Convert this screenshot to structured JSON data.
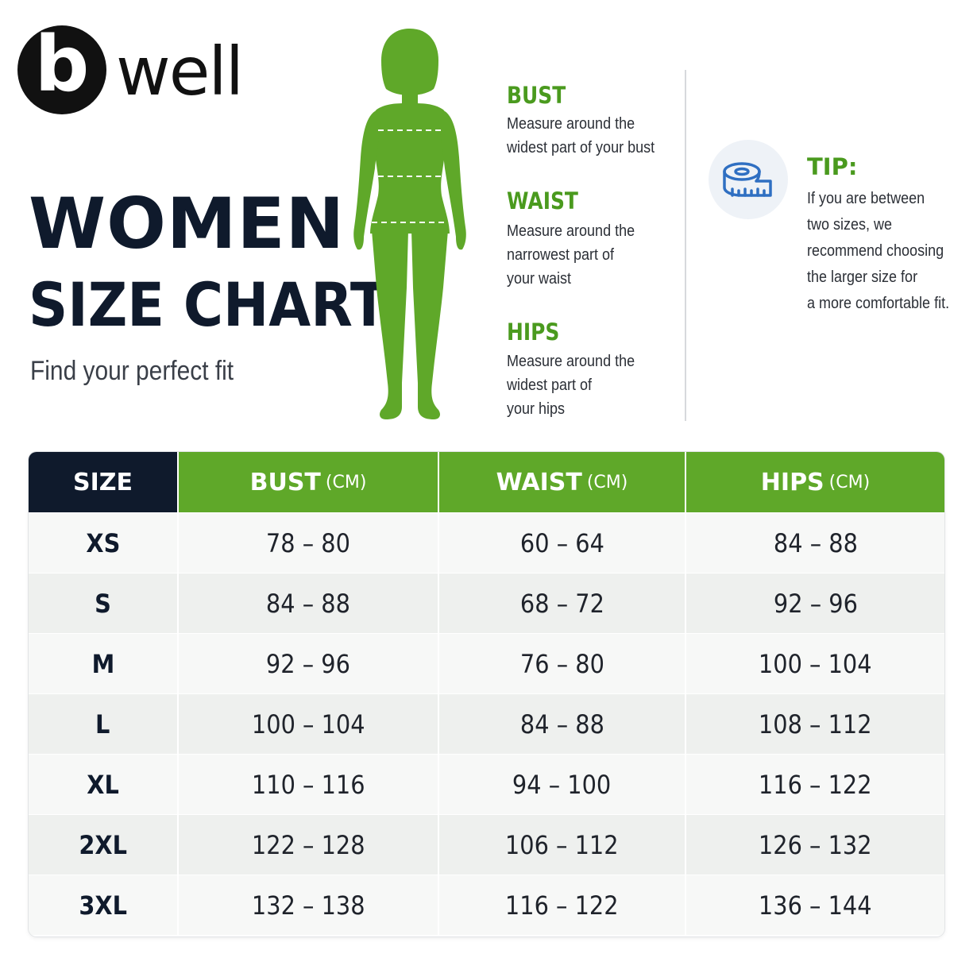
{
  "logo": {
    "mark": "b",
    "word": "well"
  },
  "title_line1": "WOMEN",
  "title_line2": "SIZE CHART",
  "subtitle": "Find your perfect fit",
  "figure": {
    "icon": "woman-silhouette-icon",
    "color": "#5fa829"
  },
  "measurements": [
    {
      "heading": "BUST",
      "text": "Measure around the\nwidest part of your bust"
    },
    {
      "heading": "WAIST",
      "text": "Measure around the\nnarrowest part of\nyour waist"
    },
    {
      "heading": "HIPS",
      "text": "Measure around the\nwidest part of\nyour hips"
    }
  ],
  "tip": {
    "icon": "measuring-tape-icon",
    "heading": "TIP:",
    "text": "If you are between\ntwo sizes, we\nrecommend choosing\nthe larger size for\na more comfortable fit."
  },
  "table": {
    "headers": [
      {
        "label": "SIZE",
        "unit": ""
      },
      {
        "label": "BUST",
        "unit": "(CM)"
      },
      {
        "label": "WAIST",
        "unit": "(CM)"
      },
      {
        "label": "HIPS",
        "unit": "(CM)"
      }
    ],
    "rows": [
      [
        "XS",
        "78 – 80",
        "60 – 64",
        "84 – 88"
      ],
      [
        "S",
        "84 – 88",
        "68 – 72",
        "92 – 96"
      ],
      [
        "M",
        "92 – 96",
        "76 – 80",
        "100 – 104"
      ],
      [
        "L",
        "100 – 104",
        "84 – 88",
        "108 – 112"
      ],
      [
        "XL",
        "110 – 116",
        "94 – 100",
        "116 – 122"
      ],
      [
        "2XL",
        "122 – 128",
        "106 – 112",
        "126 – 132"
      ],
      [
        "3XL",
        "132 – 138",
        "116 – 122",
        "136 – 144"
      ]
    ]
  },
  "colors": {
    "accent": "#5fa829",
    "heading_green": "#4a9a1e",
    "navy": "#0f1a2c"
  }
}
